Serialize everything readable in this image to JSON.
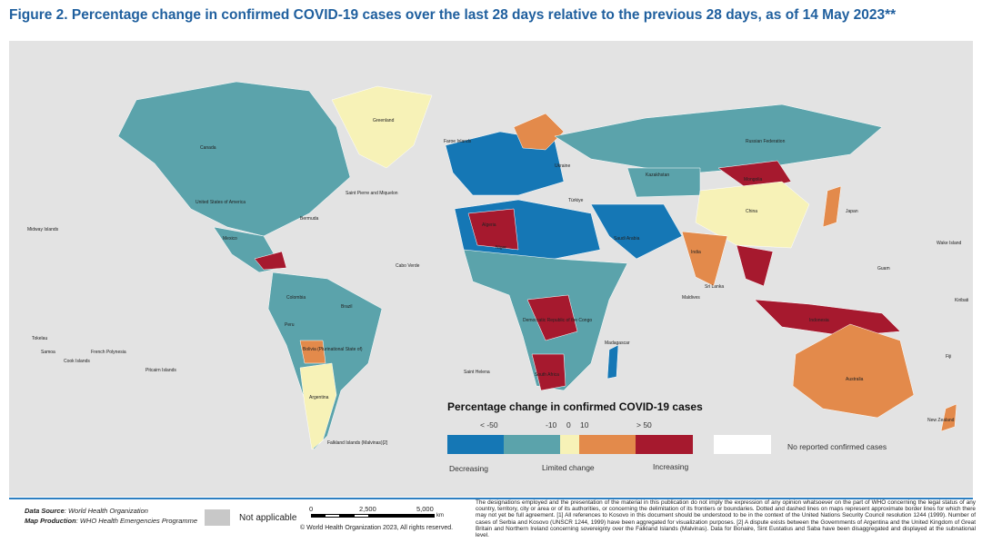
{
  "title": "Figure 2. Percentage change in confirmed COVID-19 cases over the last 28 days relative to the previous 28 days, as of 14 May 2023**",
  "colors": {
    "strong_decrease": "#1577b5",
    "decrease": "#5ba3ab",
    "limited": "#f7f2b7",
    "increase": "#e38a4b",
    "strong_increase": "#a6192e",
    "no_cases": "#ffffff",
    "not_applicable": "#c8c8c8",
    "background": "#e3e3e3"
  },
  "map_labels": [
    "Greenland",
    "Canada",
    "United States of America",
    "Mexico",
    "Brazil",
    "Argentina",
    "Peru",
    "Colombia",
    "Bolivia (Plurinational State of)",
    "Falkland Islands (Malvinas)[2]",
    "Russian Federation",
    "Kazakhstan",
    "China",
    "Mongolia",
    "India",
    "Australia",
    "New Zealand",
    "Saudi Arabia",
    "Niger",
    "Algeria",
    "South Africa",
    "Madagascar",
    "Democratic Republic of the Congo",
    "Indonesia",
    "Japan",
    "Türkiye",
    "Ukraine",
    "Faroe Islands",
    "Saint Pierre and Miquelon",
    "French Polynesia",
    "Cook Islands",
    "Pitcairn Islands",
    "Saint Helena",
    "Midway Islands",
    "Tokelau",
    "Samoa",
    "Maldives",
    "Sri Lanka",
    "Wake Island",
    "Guam",
    "Kiribati",
    "Fiji",
    "Bermuda",
    "Cabo Verde"
  ],
  "legend": {
    "title": "Percentage change in confirmed COVID-19 cases",
    "ticks": [
      "< -50",
      "-10",
      "0",
      "10",
      "> 50"
    ],
    "categories": [
      "Decreasing",
      "Limited change",
      "Increasing"
    ],
    "no_cases": "No reported confirmed cases"
  },
  "footer": {
    "data_source_label": "Data Source",
    "data_source": ": World Health Organization",
    "map_production_label": "Map Production",
    "map_production": ": WHO Health Emergencies Programme",
    "not_applicable": "Not applicable",
    "scale": [
      "0",
      "2,500",
      "5,000"
    ],
    "scale_unit": "km",
    "copyright": "© World Health Organization  2023,  All rights reserved.",
    "disclaimer": "The designations employed and the presentation of the material in this publication do not imply the expression of any opinion whatsoever on the part of WHO concerning the legal status of any country, territory, city or area or of its authorities, or concerning the delimitation of its frontiers or boundaries. Dotted and dashed lines on maps represent approximate border lines for which there may not yet be full agreement. [1] All references to Kosovo in this document should be understood to be in the context of the United Nations Security Council resolution 1244 (1999). Number of cases of Serbia and Kosovo (UNSCR 1244, 1999) have been aggregated for visualization purposes. [2] A dispute exists between the Governments of Argentina and the United Kingdom of Great Britain and Northern Ireland concerning sovereignty over the Falkland Islands (Malvinas). Data for Bonaire, Sint Eustatius and Saba have been disaggregated and displayed at the subnational level."
  }
}
